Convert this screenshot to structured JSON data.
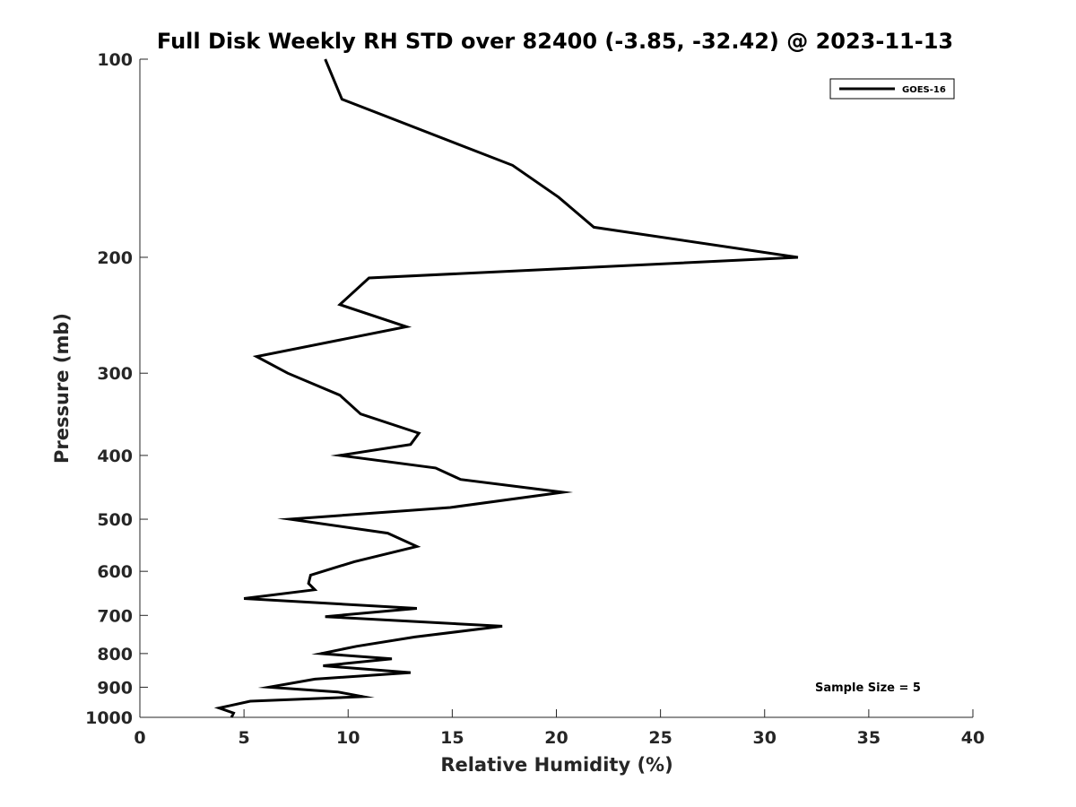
{
  "chart_data": {
    "type": "line",
    "title": "Full Disk Weekly RH STD over 82400 (-3.85, -32.42) @ 2023-11-13",
    "xlabel": "Relative Humidity (%)",
    "ylabel": "Pressure (mb)",
    "xlim": [
      0,
      40
    ],
    "ylim": [
      100,
      1000
    ],
    "yscale": "log",
    "yreversed": true,
    "grid": false,
    "legend_position": "top-right",
    "x_ticks": [
      0,
      5,
      10,
      15,
      20,
      25,
      30,
      35,
      40
    ],
    "x_tick_labels": [
      "0",
      "5",
      "10",
      "15",
      "20",
      "25",
      "30",
      "35",
      "40"
    ],
    "y_ticks": [
      100,
      200,
      300,
      400,
      500,
      600,
      700,
      800,
      900,
      1000
    ],
    "y_tick_labels": [
      "100",
      "200",
      "300",
      "400",
      "500",
      "600",
      "700",
      "800",
      "900",
      "1000"
    ],
    "series": [
      {
        "name": "GOES-16",
        "color": "#000000",
        "x": [
          8.9,
          9.7,
          17.9,
          20.1,
          21.8,
          31.6,
          11.0,
          9.6,
          12.8,
          5.6,
          7.1,
          9.6,
          10.6,
          13.4,
          13.0,
          9.6,
          14.2,
          15.4,
          20.3,
          14.9,
          7.2,
          11.9,
          13.3,
          10.3,
          8.2,
          8.1,
          8.4,
          5.0,
          13.3,
          8.9,
          17.4,
          13.2,
          10.4,
          8.7,
          12.1,
          8.8,
          13.0,
          8.4,
          6.2,
          9.5,
          10.7,
          5.3,
          3.8,
          4.5,
          4.4
        ],
        "y": [
          100,
          115,
          145,
          162,
          180,
          200,
          215,
          236,
          255,
          283,
          300,
          324,
          346,
          370,
          385,
          400,
          418,
          435,
          455,
          480,
          500,
          525,
          550,
          580,
          608,
          626,
          640,
          660,
          683,
          703,
          727,
          755,
          780,
          800,
          815,
          835,
          855,
          875,
          900,
          915,
          930,
          945,
          968,
          985,
          1000
        ]
      }
    ],
    "annotations": [
      "Sample Size = 5"
    ]
  }
}
